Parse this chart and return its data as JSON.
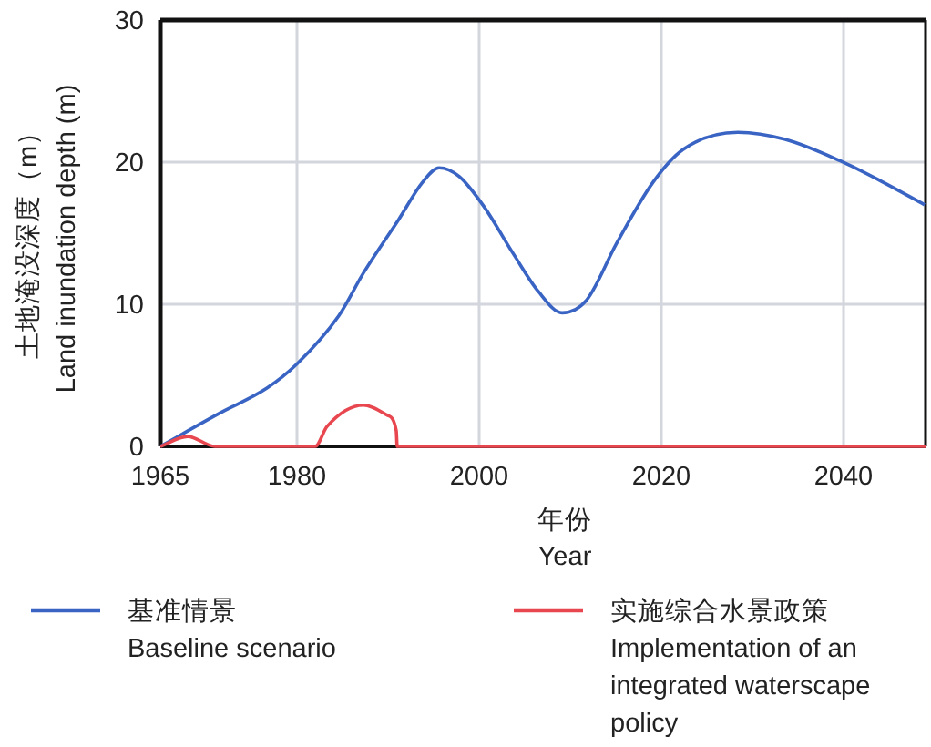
{
  "chart_data": {
    "type": "line",
    "xlabel": "年份\nYear",
    "ylabel": "土地淹没深度（m）\nLand inundation depth (m)",
    "xlim": [
      1965,
      2049
    ],
    "ylim": [
      0,
      30
    ],
    "xticks": [
      1965,
      1980,
      2000,
      2020,
      2040
    ],
    "yticks": [
      0,
      10,
      20,
      30
    ],
    "grid": true,
    "legend": "bottom",
    "line_style": "solid",
    "marker": "none",
    "series": [
      {
        "name": "基准情景\nBaseline scenario",
        "color": "#3a64c4",
        "x": [
          1965,
          1971.4,
          1976.7,
          1980,
          1984.6,
          1987.3,
          1991.2,
          1993.8,
          1995.6,
          1997.8,
          2000.5,
          2003.8,
          2006.5,
          2009.1,
          2011.8,
          2015.1,
          2019.1,
          2022.4,
          2028.4,
          2033.6,
          2039.6,
          2044.3,
          2048.9
        ],
        "values": [
          0,
          2.3,
          4.1,
          5.8,
          9.2,
          12.2,
          16,
          18.6,
          19.6,
          19,
          16.9,
          13.5,
          10.9,
          9.4,
          10.3,
          14.3,
          18.6,
          20.9,
          22.1,
          21.6,
          20.1,
          18.6,
          17
        ]
      },
      {
        "name": "实施综合水景政策\nImplementation of an\nintegrated waterscape\npolicy",
        "color": "#e8474f",
        "x": [
          1965,
          1968,
          1971,
          1982,
          1983.3,
          1987.3,
          1989.9,
          1990.9,
          1991,
          2049
        ],
        "values": [
          0,
          0.7,
          0,
          0,
          1.4,
          2.9,
          2.2,
          1.1,
          0,
          0
        ]
      }
    ]
  }
}
